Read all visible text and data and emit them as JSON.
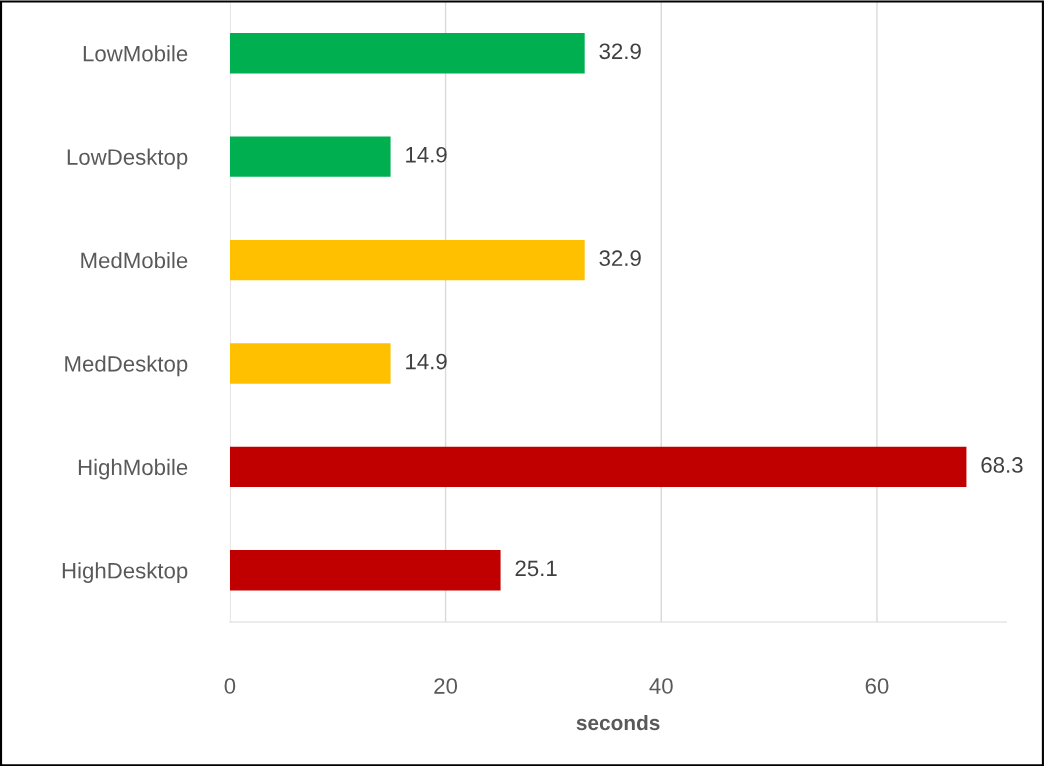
{
  "chart_data": {
    "type": "bar",
    "orientation": "horizontal",
    "categories": [
      "LowMobile",
      "LowDesktop",
      "MedMobile",
      "MedDesktop",
      "HighMobile",
      "HighDesktop"
    ],
    "values": [
      32.9,
      14.9,
      32.9,
      14.9,
      68.3,
      25.1
    ],
    "colors": [
      "#00b050",
      "#00b050",
      "#ffc000",
      "#ffc000",
      "#c00000",
      "#c00000"
    ],
    "xlabel": "seconds",
    "xlim": [
      0,
      72
    ],
    "xticks": [
      0,
      20,
      40,
      60
    ],
    "grid": "x",
    "data_labels": true
  }
}
